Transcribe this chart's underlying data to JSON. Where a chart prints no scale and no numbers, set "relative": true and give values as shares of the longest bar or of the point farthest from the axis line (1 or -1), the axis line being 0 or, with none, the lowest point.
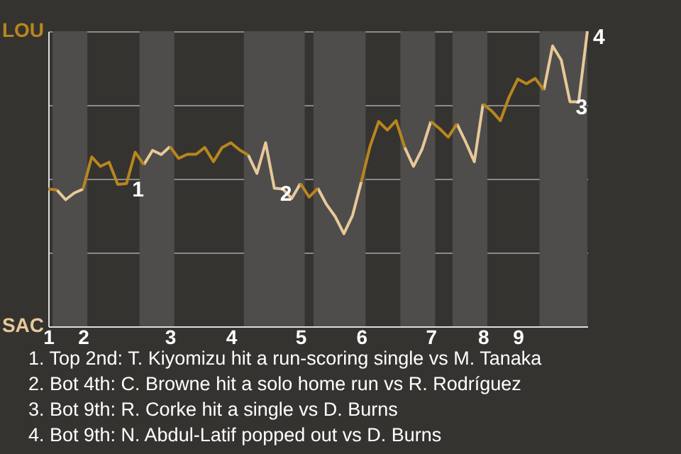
{
  "chart_data": {
    "type": "line",
    "relative": true,
    "grid": "y",
    "line_style": "solid",
    "categories": [
      "1",
      null,
      null,
      null,
      "2",
      null,
      null,
      null,
      null,
      null,
      null,
      null,
      null,
      null,
      "3",
      null,
      null,
      null,
      null,
      null,
      null,
      "4",
      null,
      null,
      null,
      null,
      null,
      null,
      null,
      "5",
      null,
      null,
      null,
      null,
      null,
      null,
      "6",
      null,
      null,
      null,
      null,
      null,
      null,
      null,
      "7",
      null,
      null,
      null,
      null,
      null,
      "8",
      null,
      null,
      null,
      "9",
      null,
      null,
      null,
      null,
      null,
      null,
      null,
      null
    ],
    "series": [
      {
        "color": "#b8861e",
        "values": [
          0.465,
          0.462,
          null,
          null,
          0.465,
          0.574,
          0.542,
          0.556,
          0.481,
          0.484,
          0.59,
          0.548,
          null,
          null,
          0.609,
          0.569,
          0.583,
          0.583,
          0.606,
          0.558,
          0.606,
          0.622,
          0.598,
          0.58,
          null,
          null,
          null,
          null,
          null,
          0.484,
          0.438,
          0.468,
          null,
          null,
          null,
          null,
          0.489,
          0.609,
          0.694,
          0.665,
          0.697,
          0.606,
          null,
          null,
          0.694,
          0.67,
          0.641,
          0.686,
          null,
          null,
          0.753,
          0.73,
          0.697,
          0.777,
          0.838,
          0.822,
          0.84,
          0.801,
          null,
          null,
          null,
          null,
          null
        ]
      },
      {
        "color": "#e8c89a",
        "values": [
          null,
          0.462,
          0.429,
          0.452,
          0.465,
          null,
          null,
          null,
          null,
          null,
          null,
          0.548,
          0.596,
          0.582,
          0.609,
          null,
          null,
          null,
          null,
          null,
          null,
          null,
          null,
          0.58,
          0.518,
          0.622,
          0.468,
          0.465,
          0.433,
          0.484,
          null,
          0.468,
          0.413,
          0.372,
          0.314,
          0.376,
          0.489,
          null,
          null,
          null,
          null,
          0.606,
          0.542,
          0.601,
          0.694,
          null,
          null,
          0.686,
          0.625,
          0.558,
          0.753,
          null,
          null,
          null,
          null,
          null,
          null,
          0.801,
          0.95,
          0.902,
          0.761,
          0.761,
          1
        ]
      }
    ],
    "annotations": [
      "LOU",
      "SAC",
      "1",
      "2",
      "3",
      "4",
      "1. Top 2nd: T. Kiyomizu hit a run-scoring single vs M. Tanaka",
      "2. Bot 4th: C. Browne hit a solo home run vs R. Rodríguez",
      "3. Bot 9th: R. Corke hit a single vs D. Burns",
      "4. Bot 9th: N. Abdul-Latif popped out vs D. Burns"
    ]
  }
}
